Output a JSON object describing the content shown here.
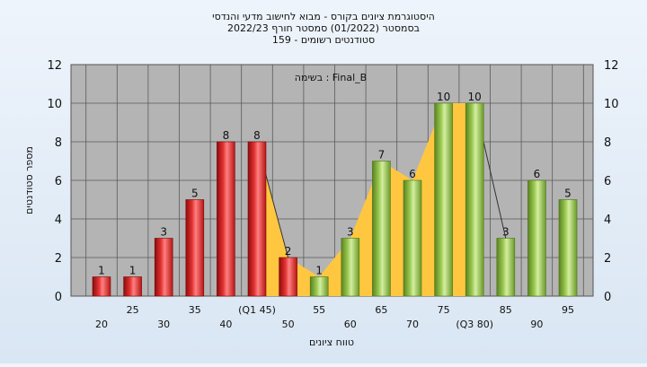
{
  "chart_data": {
    "type": "bar",
    "title_lines": [
      "היסטוגרמת ציונים בקורס - מבוא לחישוב מדעי והנדסי",
      "בסמסטר  (01/2022)  סמסטר חורף  2022/23",
      "סטודנטים רשומים - 159"
    ],
    "annotation": "בשימה : Final_B",
    "xlabel": "טווח ציונים",
    "ylabel": "מספר סטודנטים",
    "ylim": [
      0,
      12
    ],
    "yticks": [
      0,
      2,
      4,
      6,
      8,
      10,
      12
    ],
    "grid": true,
    "categories": [
      20,
      25,
      30,
      35,
      40,
      45,
      50,
      55,
      60,
      65,
      70,
      75,
      80,
      85,
      90,
      95
    ],
    "tick_labels": [
      "20",
      "25",
      "30",
      "35",
      "40",
      "(Q1 45)",
      "50",
      "55",
      "60",
      "65",
      "70",
      "75",
      "(Q3 80)",
      "85",
      "90",
      "95"
    ],
    "values": [
      1,
      1,
      3,
      5,
      8,
      8,
      2,
      1,
      3,
      7,
      6,
      10,
      10,
      3,
      6,
      5
    ],
    "bar_colors": [
      "red",
      "red",
      "red",
      "red",
      "red",
      "red",
      "red",
      "green",
      "green",
      "green",
      "green",
      "green",
      "green",
      "green",
      "green",
      "green"
    ],
    "shaded_band": {
      "from": 45,
      "to": 80
    },
    "colors": {
      "plot_bg": "#b4b4b4",
      "grid": "#5a5a5a",
      "red_bar": "#dd2222",
      "green_bar": "#8cc040",
      "band": "#ffc740",
      "band_edge": "#333333"
    }
  }
}
